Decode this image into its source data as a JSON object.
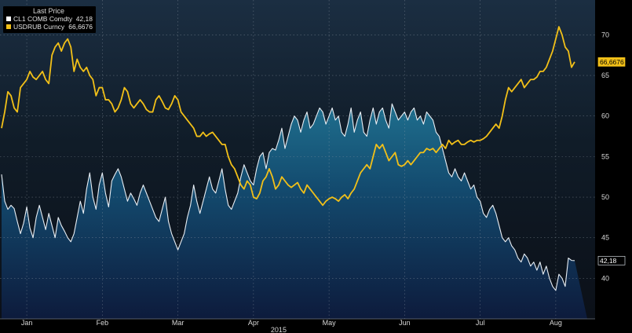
{
  "chart_data": {
    "type": "line",
    "legend": {
      "title": "Last Price",
      "placement": "top-left"
    },
    "xaxis": {
      "year_label": "2015",
      "months": [
        "Jan",
        "Feb",
        "Mar",
        "Apr",
        "May",
        "Jun",
        "Jul",
        "Aug"
      ],
      "month_start_index": [
        8,
        32,
        56,
        80,
        104,
        128,
        152,
        176
      ],
      "n_points": 187
    },
    "yaxis": {
      "ylim": [
        35,
        74.3
      ],
      "ticks": [
        40,
        45,
        50,
        55,
        60,
        65,
        70
      ],
      "grid": true,
      "position": "right"
    },
    "series": [
      {
        "name": "CL1 COMB Comdty",
        "last_value": "42,18",
        "color": "#e8eef4",
        "fill": "area",
        "values": [
          52.8,
          49.5,
          48.5,
          49.0,
          48.6,
          47.0,
          45.5,
          46.8,
          48.8,
          46.2,
          45.0,
          47.5,
          49.0,
          47.5,
          46.0,
          48.0,
          46.5,
          45.0,
          47.5,
          46.5,
          45.8,
          45.0,
          44.5,
          45.5,
          47.5,
          49.5,
          48.0,
          51.0,
          53.0,
          50.0,
          48.5,
          51.5,
          53.0,
          50.5,
          48.8,
          52.0,
          52.8,
          53.5,
          52.5,
          51.0,
          49.5,
          50.5,
          49.8,
          49.0,
          50.5,
          51.5,
          50.5,
          49.5,
          48.5,
          47.5,
          47.0,
          48.5,
          50.0,
          47.0,
          45.5,
          44.5,
          43.5,
          44.5,
          45.5,
          47.5,
          49.0,
          51.5,
          49.5,
          48.0,
          49.5,
          51.0,
          52.5,
          51.0,
          50.5,
          52.0,
          53.5,
          51.0,
          49.0,
          48.5,
          49.5,
          50.5,
          52.5,
          54.0,
          53.0,
          52.0,
          51.5,
          53.5,
          55.0,
          55.5,
          53.5,
          55.5,
          56.0,
          55.8,
          57.0,
          58.5,
          56.0,
          57.5,
          59.0,
          60.0,
          59.5,
          58.0,
          59.5,
          60.5,
          58.5,
          59.0,
          60.0,
          61.0,
          60.5,
          59.0,
          60.0,
          61.0,
          59.5,
          60.0,
          58.0,
          57.5,
          59.0,
          61.0,
          58.0,
          59.5,
          60.5,
          58.0,
          57.5,
          59.5,
          61.0,
          59.0,
          60.5,
          61.0,
          59.5,
          58.5,
          61.5,
          60.5,
          59.5,
          60.0,
          60.5,
          59.5,
          60.5,
          61.0,
          59.5,
          60.0,
          59.0,
          60.5,
          60.0,
          59.5,
          58.0,
          57.5,
          56.0,
          54.5,
          53.0,
          52.5,
          53.5,
          52.5,
          52.0,
          53.0,
          52.0,
          51.0,
          51.5,
          50.0,
          49.5,
          48.0,
          47.5,
          48.5,
          49.0,
          48.0,
          46.5,
          45.0,
          44.5,
          45.0,
          44.0,
          43.5,
          42.5,
          42.0,
          43.0,
          42.5,
          41.5,
          42.0,
          41.0,
          42.0,
          40.5,
          41.5,
          40.0,
          39.0,
          38.5,
          40.5,
          40.0,
          39.0,
          42.5,
          42.2,
          42.18
        ]
      },
      {
        "name": "USDRUB Curncy",
        "last_value": "66,6676",
        "color": "#f2c018",
        "fill": "none",
        "values": [
          58.5,
          60.5,
          63.0,
          62.5,
          61.0,
          60.5,
          63.5,
          64.0,
          64.5,
          65.5,
          64.8,
          64.5,
          65.0,
          65.5,
          64.5,
          64.0,
          67.5,
          68.5,
          69.0,
          68.0,
          69.0,
          69.5,
          68.5,
          65.5,
          67.0,
          66.0,
          65.5,
          66.0,
          65.0,
          64.5,
          62.5,
          63.5,
          63.5,
          62.0,
          62.0,
          61.5,
          60.5,
          61.0,
          62.0,
          63.5,
          63.0,
          61.5,
          61.0,
          61.5,
          62.0,
          61.5,
          60.8,
          60.5,
          60.5,
          62.0,
          62.5,
          61.8,
          61.0,
          60.8,
          61.5,
          62.5,
          62.0,
          60.5,
          60.0,
          59.5,
          59.0,
          58.5,
          57.5,
          57.5,
          58.0,
          57.5,
          57.8,
          58.0,
          57.5,
          57.0,
          56.5,
          56.5,
          55.0,
          54.0,
          53.5,
          52.5,
          51.5,
          51.0,
          52.0,
          51.5,
          50.0,
          49.8,
          50.5,
          52.0,
          52.5,
          53.5,
          52.5,
          51.0,
          51.5,
          52.5,
          52.0,
          51.5,
          51.2,
          51.5,
          51.8,
          51.0,
          50.5,
          51.5,
          51.0,
          50.5,
          50.0,
          49.5,
          49.0,
          49.5,
          49.8,
          50.0,
          49.8,
          49.5,
          50.0,
          50.3,
          49.8,
          50.5,
          51.0,
          52.0,
          53.0,
          53.5,
          54.0,
          53.5,
          55.0,
          56.5,
          56.0,
          56.5,
          55.5,
          54.5,
          55.0,
          55.5,
          54.0,
          53.8,
          54.0,
          54.5,
          54.0,
          54.5,
          55.0,
          55.5,
          55.5,
          56.0,
          55.8,
          56.0,
          55.5,
          56.0,
          56.5,
          56.0,
          57.0,
          56.5,
          56.8,
          57.0,
          56.5,
          56.5,
          56.8,
          57.0,
          56.8,
          57.0,
          57.0,
          57.2,
          57.5,
          58.0,
          58.5,
          59.0,
          58.5,
          60.0,
          62.0,
          63.5,
          63.0,
          63.5,
          64.0,
          64.5,
          63.5,
          64.0,
          64.5,
          64.5,
          64.8,
          65.5,
          65.5,
          66.0,
          67.0,
          68.0,
          69.5,
          71.0,
          70.0,
          68.5,
          68.0,
          66.0,
          66.6676
        ]
      }
    ]
  }
}
